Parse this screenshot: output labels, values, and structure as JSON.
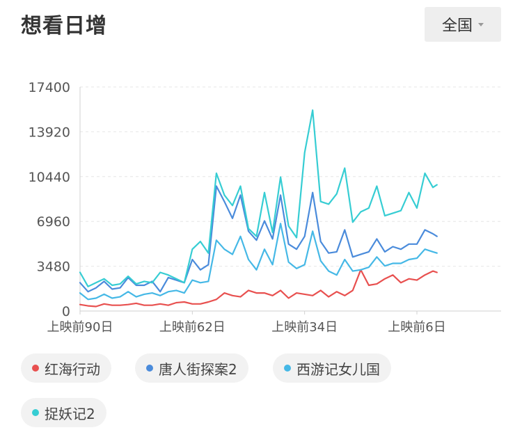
{
  "header": {
    "title": "想看日增",
    "region": "全国"
  },
  "colors": {
    "axis_text": "#555555",
    "grid": "#e6e6e6"
  },
  "chart_data": {
    "type": "line",
    "title": "想看日增",
    "xlabel": "",
    "ylabel": "",
    "ylim": [
      0,
      17400
    ],
    "yticks": [
      0,
      3480,
      6960,
      10440,
      13920,
      17400
    ],
    "xticks": [
      {
        "label": "上映前90日",
        "x": -90
      },
      {
        "label": "上映前62日",
        "x": -62
      },
      {
        "label": "上映前34日",
        "x": -34
      },
      {
        "label": "上映前6日",
        "x": -6
      }
    ],
    "xlim": [
      -90,
      15
    ],
    "grid": true,
    "legend_position": "bottom",
    "series": [
      {
        "name": "红海行动",
        "color": "#e8504f",
        "x": [
          -90,
          -88,
          -86,
          -84,
          -82,
          -80,
          -78,
          -76,
          -74,
          -72,
          -70,
          -68,
          -66,
          -64,
          -62,
          -60,
          -58,
          -56,
          -54,
          -52,
          -50,
          -48,
          -46,
          -44,
          -42,
          -40,
          -38,
          -36,
          -34,
          -32,
          -30,
          -28,
          -26,
          -24,
          -22,
          -20,
          -18,
          -16,
          -14,
          -12,
          -10,
          -8,
          -6,
          -4,
          -2,
          -1
        ],
        "y": [
          500,
          400,
          350,
          550,
          450,
          450,
          500,
          600,
          450,
          450,
          550,
          450,
          650,
          700,
          550,
          550,
          700,
          900,
          1400,
          1200,
          1100,
          1600,
          1400,
          1400,
          1200,
          1600,
          1000,
          1400,
          1300,
          1200,
          1600,
          1100,
          1500,
          1200,
          1600,
          3200,
          2000,
          2100,
          2500,
          2800,
          2200,
          2500,
          2400,
          2800,
          3100,
          3000
        ]
      },
      {
        "name": "唐人街探案2",
        "color": "#4a8bdb",
        "x": [
          -90,
          -88,
          -86,
          -84,
          -82,
          -80,
          -78,
          -76,
          -74,
          -72,
          -70,
          -68,
          -66,
          -64,
          -62,
          -60,
          -58,
          -56,
          -54,
          -52,
          -50,
          -48,
          -46,
          -44,
          -42,
          -40,
          -38,
          -36,
          -34,
          -32,
          -30,
          -28,
          -26,
          -24,
          -22,
          -20,
          -18,
          -16,
          -14,
          -12,
          -10,
          -8,
          -6,
          -4,
          -2,
          -1
        ],
        "y": [
          2200,
          1500,
          1800,
          2300,
          1700,
          1800,
          2600,
          2000,
          2000,
          2300,
          1500,
          2600,
          2400,
          2200,
          4000,
          3200,
          3600,
          9700,
          8500,
          7200,
          9000,
          6200,
          5500,
          7000,
          5600,
          9000,
          5200,
          4800,
          5800,
          9200,
          5400,
          4500,
          4600,
          6300,
          4200,
          4400,
          4600,
          5600,
          4600,
          5000,
          4800,
          5200,
          5200,
          6300,
          6000,
          5800
        ]
      },
      {
        "name": "西游记女儿国",
        "color": "#45b8e6",
        "x": [
          -90,
          -88,
          -86,
          -84,
          -82,
          -80,
          -78,
          -76,
          -74,
          -72,
          -70,
          -68,
          -66,
          -64,
          -62,
          -60,
          -58,
          -56,
          -54,
          -52,
          -50,
          -48,
          -46,
          -44,
          -42,
          -40,
          -38,
          -36,
          -34,
          -32,
          -30,
          -28,
          -26,
          -24,
          -22,
          -20,
          -18,
          -16,
          -14,
          -12,
          -10,
          -8,
          -6,
          -4,
          -2,
          -1
        ],
        "y": [
          1400,
          900,
          1000,
          1300,
          1000,
          1100,
          1500,
          1100,
          1300,
          1400,
          1200,
          1500,
          1600,
          1400,
          2400,
          2200,
          2300,
          5500,
          4800,
          4400,
          5800,
          4000,
          3200,
          4800,
          3600,
          6800,
          3800,
          3300,
          3600,
          6200,
          3900,
          3100,
          2800,
          4000,
          3100,
          3200,
          3400,
          4200,
          3500,
          3700,
          3700,
          4000,
          4100,
          4800,
          4600,
          4500
        ]
      },
      {
        "name": "捉妖记2",
        "color": "#36cdd3",
        "x": [
          -90,
          -88,
          -86,
          -84,
          -82,
          -80,
          -78,
          -76,
          -74,
          -72,
          -70,
          -68,
          -66,
          -64,
          -62,
          -60,
          -58,
          -56,
          -54,
          -52,
          -50,
          -48,
          -46,
          -44,
          -42,
          -40,
          -38,
          -36,
          -34,
          -32,
          -30,
          -28,
          -26,
          -24,
          -22,
          -20,
          -18,
          -16,
          -14,
          -12,
          -10,
          -8,
          -6,
          -4,
          -2,
          -1
        ],
        "y": [
          3000,
          1900,
          2200,
          2500,
          2000,
          2100,
          2700,
          2100,
          2300,
          2200,
          3000,
          2800,
          2500,
          2200,
          4800,
          5400,
          4500,
          10700,
          9000,
          8200,
          9700,
          6400,
          5800,
          9200,
          6100,
          10400,
          6600,
          5700,
          12300,
          15600,
          8500,
          8300,
          9100,
          11100,
          6900,
          7700,
          8000,
          9700,
          7400,
          7600,
          7800,
          9200,
          8000,
          10700,
          9600,
          9800
        ]
      }
    ]
  }
}
